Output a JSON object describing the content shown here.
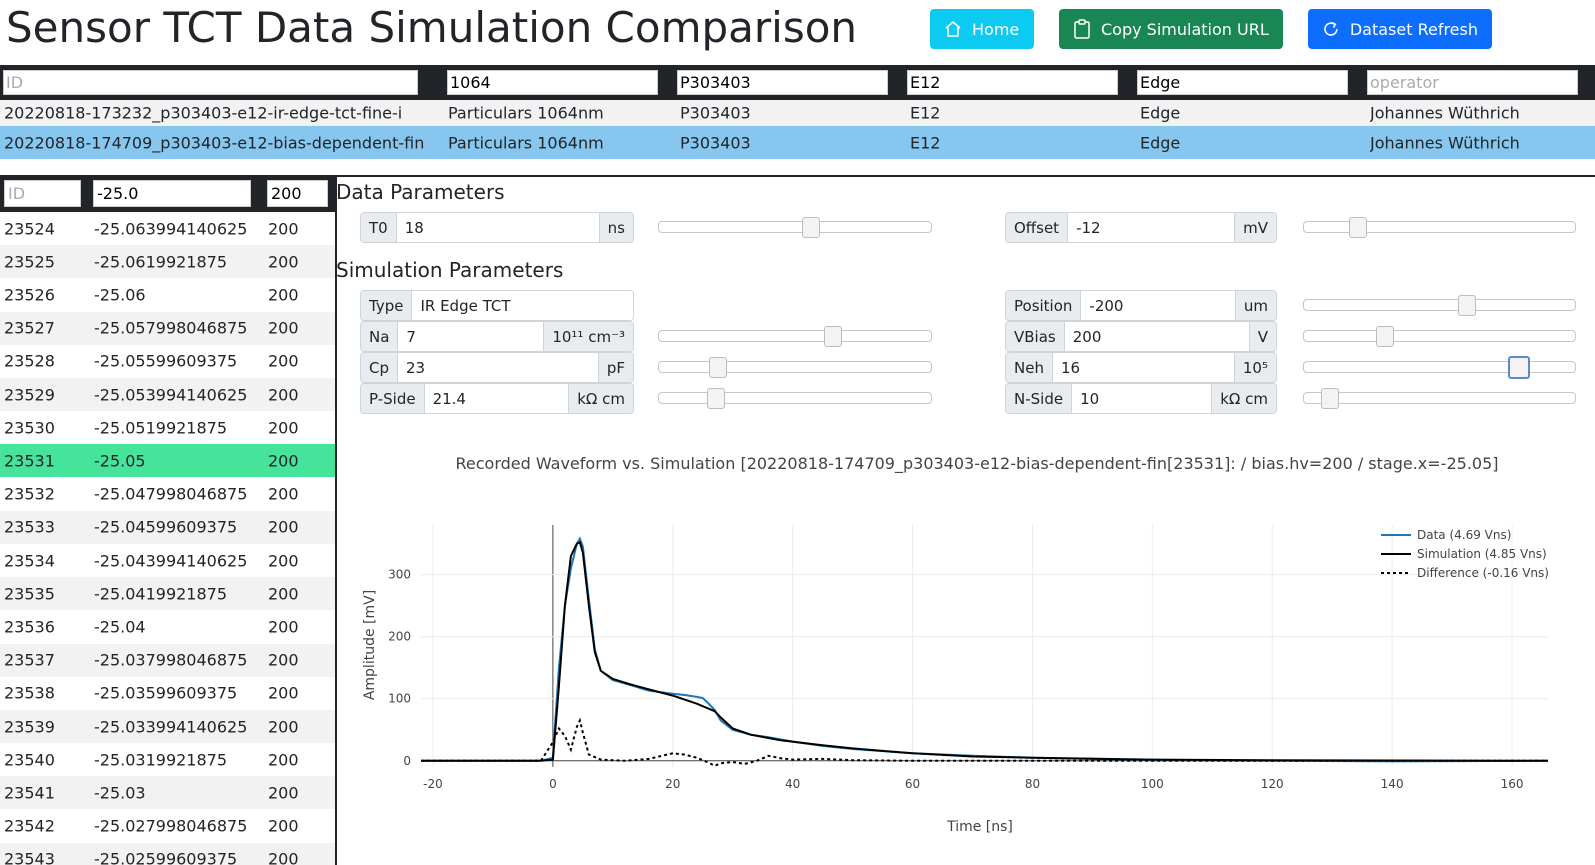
{
  "header": {
    "title": "Sensor TCT Data Simulation Comparison",
    "home_label": "Home",
    "copy_label": "Copy Simulation URL",
    "refresh_label": "Dataset Refresh"
  },
  "top_table": {
    "filters": [
      {
        "value": "",
        "placeholder": "ID"
      },
      {
        "value": "1064",
        "placeholder": ""
      },
      {
        "value": "P303403",
        "placeholder": ""
      },
      {
        "value": "E12",
        "placeholder": ""
      },
      {
        "value": "Edge",
        "placeholder": ""
      },
      {
        "value": "",
        "placeholder": "operator"
      }
    ],
    "rows": [
      [
        "20220818-173232_p303403-e12-ir-edge-tct-fine-i",
        "Particulars 1064nm",
        "P303403",
        "E12",
        "Edge",
        "Johannes Wüthrich"
      ],
      [
        "20220818-174709_p303403-e12-bias-dependent-fin",
        "Particulars 1064nm",
        "P303403",
        "E12",
        "Edge",
        "Johannes Wüthrich"
      ]
    ],
    "selected_row": 1
  },
  "left_table": {
    "filters": [
      {
        "value": "",
        "placeholder": "ID"
      },
      {
        "value": "-25.0",
        "placeholder": ""
      },
      {
        "value": "200",
        "placeholder": ""
      }
    ],
    "rows": [
      [
        "23524",
        "-25.063994140625",
        "200"
      ],
      [
        "23525",
        "-25.0619921875",
        "200"
      ],
      [
        "23526",
        "-25.06",
        "200"
      ],
      [
        "23527",
        "-25.057998046875",
        "200"
      ],
      [
        "23528",
        "-25.05599609375",
        "200"
      ],
      [
        "23529",
        "-25.053994140625",
        "200"
      ],
      [
        "23530",
        "-25.0519921875",
        "200"
      ],
      [
        "23531",
        "-25.05",
        "200"
      ],
      [
        "23532",
        "-25.047998046875",
        "200"
      ],
      [
        "23533",
        "-25.04599609375",
        "200"
      ],
      [
        "23534",
        "-25.043994140625",
        "200"
      ],
      [
        "23535",
        "-25.0419921875",
        "200"
      ],
      [
        "23536",
        "-25.04",
        "200"
      ],
      [
        "23537",
        "-25.037998046875",
        "200"
      ],
      [
        "23538",
        "-25.03599609375",
        "200"
      ],
      [
        "23539",
        "-25.033994140625",
        "200"
      ],
      [
        "23540",
        "-25.0319921875",
        "200"
      ],
      [
        "23541",
        "-25.03",
        "200"
      ],
      [
        "23542",
        "-25.027998046875",
        "200"
      ],
      [
        "23543",
        "-25.02599609375",
        "200"
      ]
    ],
    "selected_row": 7
  },
  "data_params": {
    "title": "Data Parameters",
    "t0": {
      "label": "T0",
      "value": "18",
      "unit": "ns",
      "slider": 0.56
    },
    "offset": {
      "label": "Offset",
      "value": "-12",
      "unit": "mV",
      "slider": 0.2
    }
  },
  "sim_params": {
    "title": "Simulation Parameters",
    "type": {
      "label": "Type",
      "value": "IR Edge TCT"
    },
    "na": {
      "label": "Na",
      "value": "7",
      "unit": "10¹¹ cm⁻³",
      "slider": 0.64
    },
    "cp": {
      "label": "Cp",
      "value": "23",
      "unit": "pF",
      "slider": 0.22
    },
    "pside": {
      "label": "P-Side",
      "value": "21.4",
      "unit": "kΩ cm",
      "slider": 0.21
    },
    "position": {
      "label": "Position",
      "value": "-200",
      "unit": "um",
      "slider": 0.6
    },
    "vbias": {
      "label": "VBias",
      "value": "200",
      "unit": "V",
      "slider": 0.3
    },
    "neh": {
      "label": "Neh",
      "value": "16",
      "unit": "10⁵",
      "slider": 0.79
    },
    "nside": {
      "label": "N-Side",
      "value": "10",
      "unit": "kΩ cm",
      "slider": 0.1
    }
  },
  "chart_data": {
    "type": "line",
    "title": "Recorded Waveform vs. Simulation [20220818-174709_p303403-e12-bias-dependent-fin[23531]: / bias.hv=200 / stage.x=-25.05]",
    "xlabel": "Time [ns]",
    "ylabel": "Amplitude [mV]",
    "xlim": [
      -22,
      166
    ],
    "ylim": [
      -10,
      380
    ],
    "xticks": [
      -20,
      0,
      20,
      40,
      60,
      80,
      100,
      120,
      140,
      160
    ],
    "yticks": [
      0,
      100,
      200,
      300
    ],
    "grid": true,
    "legend_position": "top-right",
    "series": [
      {
        "name": "Data (4.69 Vns)",
        "color": "#1f77b4",
        "style": "solid",
        "points": [
          [
            -22,
            0
          ],
          [
            -10,
            0
          ],
          [
            -2,
            0
          ],
          [
            0,
            5
          ],
          [
            1,
            150
          ],
          [
            2,
            250
          ],
          [
            3,
            310
          ],
          [
            4,
            350
          ],
          [
            4.5,
            358
          ],
          [
            5,
            345
          ],
          [
            6,
            260
          ],
          [
            7,
            180
          ],
          [
            8,
            145
          ],
          [
            10,
            130
          ],
          [
            13,
            122
          ],
          [
            16,
            113
          ],
          [
            20,
            108
          ],
          [
            22,
            106
          ],
          [
            24,
            103
          ],
          [
            25,
            101
          ],
          [
            26,
            92
          ],
          [
            27,
            82
          ],
          [
            28,
            65
          ],
          [
            30,
            50
          ],
          [
            33,
            42
          ],
          [
            36,
            38
          ],
          [
            40,
            31
          ],
          [
            45,
            24
          ],
          [
            50,
            19
          ],
          [
            60,
            12
          ],
          [
            70,
            8
          ],
          [
            80,
            5
          ],
          [
            90,
            3
          ],
          [
            100,
            1
          ],
          [
            120,
            0
          ],
          [
            140,
            -1
          ],
          [
            166,
            0
          ]
        ]
      },
      {
        "name": "Simulation (4.85 Vns)",
        "color": "#000000",
        "style": "solid",
        "points": [
          [
            -22,
            0
          ],
          [
            -10,
            0
          ],
          [
            -2,
            0
          ],
          [
            0,
            2
          ],
          [
            1,
            120
          ],
          [
            2,
            250
          ],
          [
            3,
            330
          ],
          [
            4,
            350
          ],
          [
            4.5,
            352
          ],
          [
            5,
            335
          ],
          [
            6,
            250
          ],
          [
            7,
            175
          ],
          [
            8,
            145
          ],
          [
            10,
            132
          ],
          [
            13,
            123
          ],
          [
            16,
            115
          ],
          [
            20,
            105
          ],
          [
            24,
            92
          ],
          [
            27,
            80
          ],
          [
            28,
            70
          ],
          [
            30,
            52
          ],
          [
            33,
            42
          ],
          [
            38,
            33
          ],
          [
            45,
            25
          ],
          [
            50,
            20
          ],
          [
            60,
            12
          ],
          [
            70,
            7
          ],
          [
            80,
            5
          ],
          [
            100,
            2
          ],
          [
            120,
            1
          ],
          [
            166,
            0
          ]
        ]
      },
      {
        "name": "Difference (-0.16 Vns)",
        "color": "#000000",
        "style": "dotted",
        "points": [
          [
            -22,
            0
          ],
          [
            -2,
            0
          ],
          [
            0,
            30
          ],
          [
            1,
            52
          ],
          [
            2,
            40
          ],
          [
            3,
            18
          ],
          [
            4,
            55
          ],
          [
            4.5,
            65
          ],
          [
            5,
            45
          ],
          [
            6,
            10
          ],
          [
            8,
            2
          ],
          [
            12,
            0
          ],
          [
            16,
            3
          ],
          [
            20,
            12
          ],
          [
            22,
            10
          ],
          [
            24,
            5
          ],
          [
            26,
            -3
          ],
          [
            27,
            -8
          ],
          [
            28,
            -4
          ],
          [
            30,
            -2
          ],
          [
            32,
            -5
          ],
          [
            34,
            0
          ],
          [
            36,
            8
          ],
          [
            38,
            4
          ],
          [
            40,
            2
          ],
          [
            45,
            3
          ],
          [
            50,
            1
          ],
          [
            60,
            0
          ],
          [
            80,
            0
          ],
          [
            166,
            0
          ]
        ]
      }
    ]
  }
}
